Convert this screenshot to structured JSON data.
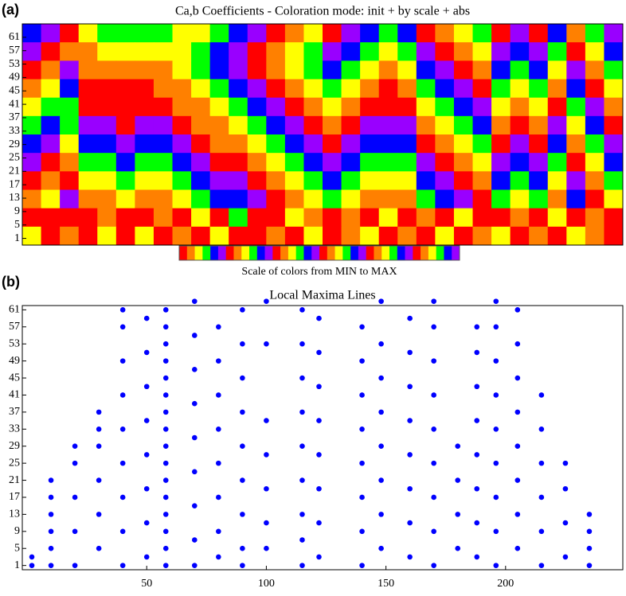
{
  "chart_data": [
    {
      "type": "heatmap",
      "panel_label": "(a)",
      "title": "Ca,b Coefficients - Coloration mode: init + by scale + abs",
      "colorbar_label": "Scale of colors from MIN to MAX",
      "colors": [
        "#ff0000",
        "#ff8000",
        "#ffff00",
        "#00ff00",
        "#0000ff",
        "#9900ff"
      ],
      "ylim": [
        -1,
        65
      ],
      "yticks": [
        1,
        5,
        9,
        13,
        17,
        21,
        25,
        29,
        33,
        37,
        41,
        45,
        49,
        53,
        57,
        61
      ],
      "matrix": [
        [
          4,
          5,
          0,
          2,
          3,
          3,
          3,
          3,
          2,
          2,
          3,
          4,
          5,
          0,
          1,
          2,
          0,
          5,
          4,
          3,
          4,
          0,
          1,
          2,
          3,
          0,
          5,
          0,
          4,
          1,
          3,
          5
        ],
        [
          5,
          0,
          1,
          1,
          2,
          2,
          2,
          2,
          2,
          3,
          4,
          5,
          0,
          1,
          2,
          3,
          5,
          4,
          3,
          2,
          3,
          5,
          0,
          1,
          2,
          5,
          4,
          5,
          3,
          0,
          2,
          4
        ],
        [
          0,
          1,
          5,
          1,
          1,
          1,
          1,
          1,
          2,
          3,
          4,
          5,
          0,
          1,
          2,
          3,
          4,
          3,
          2,
          1,
          2,
          4,
          5,
          0,
          1,
          4,
          3,
          4,
          2,
          5,
          1,
          3
        ],
        [
          1,
          2,
          4,
          0,
          0,
          0,
          0,
          1,
          1,
          2,
          3,
          4,
          5,
          0,
          1,
          2,
          3,
          2,
          1,
          0,
          1,
          3,
          4,
          5,
          0,
          3,
          2,
          3,
          1,
          4,
          0,
          2
        ],
        [
          2,
          3,
          3,
          0,
          0,
          0,
          0,
          0,
          1,
          1,
          2,
          3,
          4,
          5,
          0,
          1,
          2,
          1,
          0,
          0,
          0,
          2,
          3,
          4,
          5,
          2,
          1,
          2,
          0,
          3,
          5,
          1
        ],
        [
          3,
          4,
          3,
          5,
          5,
          0,
          5,
          5,
          0,
          1,
          1,
          2,
          3,
          4,
          5,
          0,
          1,
          0,
          5,
          5,
          5,
          1,
          2,
          3,
          4,
          1,
          0,
          1,
          5,
          2,
          4,
          0
        ],
        [
          4,
          5,
          2,
          4,
          4,
          5,
          4,
          4,
          5,
          0,
          1,
          1,
          2,
          3,
          4,
          5,
          0,
          5,
          4,
          4,
          4,
          0,
          1,
          2,
          3,
          0,
          5,
          0,
          4,
          1,
          3,
          5
        ],
        [
          5,
          0,
          1,
          3,
          3,
          4,
          3,
          3,
          4,
          5,
          0,
          0,
          1,
          2,
          3,
          4,
          5,
          4,
          3,
          3,
          3,
          5,
          0,
          1,
          2,
          5,
          4,
          5,
          3,
          0,
          2,
          4
        ],
        [
          0,
          1,
          0,
          2,
          2,
          3,
          2,
          2,
          3,
          4,
          5,
          5,
          0,
          1,
          2,
          3,
          4,
          3,
          2,
          2,
          2,
          4,
          5,
          0,
          1,
          4,
          3,
          4,
          2,
          5,
          1,
          3
        ],
        [
          1,
          2,
          5,
          1,
          1,
          2,
          1,
          1,
          2,
          3,
          4,
          4,
          5,
          0,
          1,
          2,
          3,
          2,
          1,
          1,
          1,
          3,
          4,
          5,
          0,
          3,
          2,
          3,
          1,
          4,
          0,
          2
        ],
        [
          0,
          0,
          0,
          0,
          1,
          0,
          0,
          1,
          0,
          2,
          0,
          3,
          0,
          0,
          2,
          1,
          0,
          1,
          0,
          2,
          0,
          1,
          0,
          2,
          0,
          0,
          1,
          0,
          2,
          0,
          1,
          0
        ],
        [
          2,
          0,
          1,
          0,
          2,
          0,
          2,
          0,
          1,
          0,
          2,
          0,
          0,
          1,
          0,
          2,
          0,
          1,
          2,
          0,
          1,
          0,
          2,
          0,
          1,
          2,
          0,
          1,
          0,
          2,
          1,
          0
        ]
      ]
    },
    {
      "type": "scatter",
      "panel_label": "(b)",
      "title": "Local Maxima Lines",
      "color": "#0000ff",
      "xlim": [
        -2,
        249
      ],
      "xticks": [
        50,
        100,
        150,
        200
      ],
      "ylim": [
        0,
        62
      ],
      "yticks": [
        1,
        5,
        9,
        13,
        17,
        21,
        25,
        29,
        33,
        37,
        41,
        45,
        49,
        53,
        57,
        61
      ],
      "x": [
        2,
        2,
        10,
        10,
        10,
        10,
        10,
        10,
        20,
        20,
        20,
        20,
        20,
        30,
        30,
        30,
        30,
        30,
        30,
        40,
        40,
        40,
        40,
        40,
        40,
        40,
        40,
        40,
        50,
        50,
        50,
        50,
        50,
        50,
        50,
        50,
        58,
        58,
        58,
        58,
        58,
        58,
        58,
        58,
        58,
        58,
        58,
        58,
        58,
        58,
        58,
        58,
        70,
        70,
        70,
        70,
        70,
        70,
        70,
        70,
        70,
        80,
        80,
        80,
        80,
        80,
        80,
        80,
        80,
        90,
        90,
        90,
        90,
        90,
        90,
        90,
        90,
        90,
        100,
        100,
        100,
        100,
        100,
        100,
        100,
        115,
        115,
        115,
        115,
        115,
        115,
        115,
        115,
        115,
        122,
        122,
        122,
        122,
        122,
        122,
        122,
        122,
        140,
        140,
        140,
        140,
        140,
        140,
        140,
        140,
        148,
        148,
        148,
        148,
        148,
        148,
        148,
        148,
        160,
        160,
        160,
        160,
        160,
        160,
        160,
        160,
        170,
        170,
        170,
        170,
        170,
        170,
        170,
        170,
        170,
        180,
        180,
        180,
        180,
        188,
        188,
        188,
        188,
        188,
        188,
        188,
        188,
        196,
        196,
        196,
        196,
        196,
        196,
        196,
        196,
        196,
        205,
        205,
        205,
        205,
        205,
        205,
        205,
        205,
        215,
        215,
        215,
        215,
        215,
        215,
        225,
        225,
        225,
        225,
        235,
        235,
        235,
        235
      ],
      "y": [
        1,
        3,
        1,
        5,
        9,
        13,
        17,
        21,
        1,
        9,
        17,
        25,
        29,
        5,
        13,
        21,
        29,
        33,
        37,
        1,
        9,
        17,
        25,
        33,
        41,
        49,
        57,
        61,
        3,
        11,
        19,
        27,
        35,
        43,
        51,
        59,
        1,
        5,
        9,
        13,
        17,
        21,
        25,
        29,
        33,
        37,
        41,
        45,
        49,
        53,
        57,
        61,
        1,
        7,
        15,
        23,
        31,
        39,
        47,
        55,
        63,
        3,
        9,
        17,
        25,
        33,
        41,
        49,
        57,
        1,
        5,
        13,
        21,
        29,
        37,
        45,
        53,
        61,
        5,
        11,
        19,
        27,
        35,
        53,
        63,
        1,
        7,
        13,
        21,
        29,
        37,
        45,
        53,
        61,
        3,
        11,
        19,
        27,
        35,
        43,
        51,
        59,
        1,
        9,
        17,
        25,
        33,
        41,
        49,
        57,
        5,
        13,
        21,
        29,
        37,
        45,
        53,
        63,
        3,
        11,
        19,
        27,
        35,
        43,
        51,
        59,
        1,
        9,
        17,
        25,
        33,
        41,
        49,
        57,
        63,
        5,
        13,
        21,
        29,
        3,
        11,
        19,
        27,
        35,
        43,
        51,
        57,
        1,
        9,
        17,
        25,
        33,
        41,
        49,
        57,
        63,
        5,
        13,
        21,
        29,
        37,
        45,
        53,
        61,
        1,
        9,
        17,
        25,
        33,
        41,
        3,
        11,
        19,
        25,
        1,
        5,
        9,
        13
      ]
    }
  ]
}
